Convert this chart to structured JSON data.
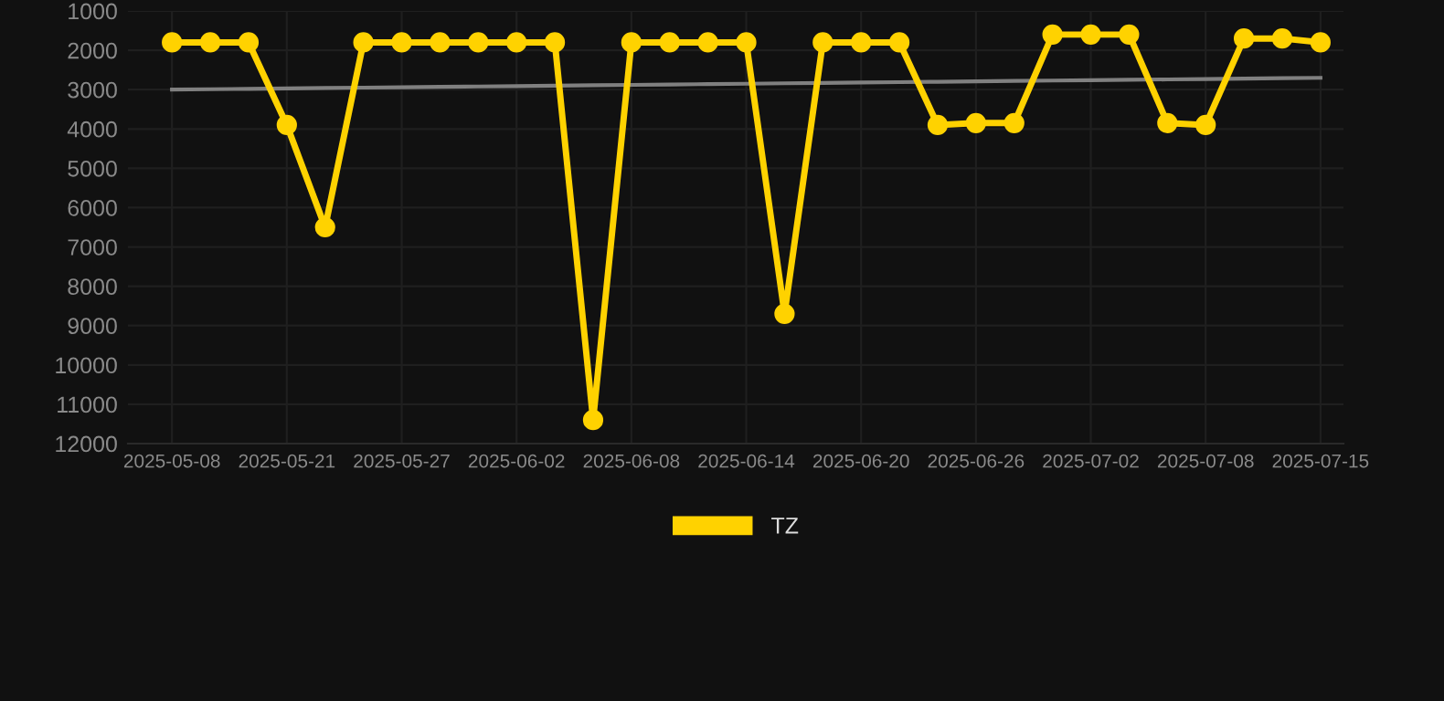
{
  "chart_data": {
    "type": "line",
    "categories": [
      "2025-05-08",
      null,
      null,
      "2025-05-21",
      null,
      null,
      "2025-05-27",
      null,
      null,
      "2025-06-02",
      null,
      null,
      "2025-06-08",
      null,
      null,
      "2025-06-14",
      null,
      null,
      "2025-06-20",
      null,
      null,
      "2025-06-26",
      null,
      null,
      "2025-07-02",
      null,
      null,
      "2025-07-08",
      null,
      null,
      "2025-07-15"
    ],
    "series": [
      {
        "name": "TZ",
        "color": "#ffd200",
        "marker": "circle",
        "values": [
          1800,
          1800,
          1800,
          3900,
          6500,
          1800,
          1800,
          1800,
          1800,
          1800,
          1800,
          11400,
          1800,
          1800,
          1800,
          1800,
          8700,
          1800,
          1800,
          1800,
          3900,
          3850,
          3850,
          1600,
          1600,
          1600,
          3850,
          3900,
          1700,
          1700,
          1800
        ]
      },
      {
        "color": "#808080",
        "marker": "none",
        "values": [
          3000,
          2990,
          2980,
          2970,
          2960,
          2950,
          2940,
          2930,
          2920,
          2910,
          2900,
          2890,
          2880,
          2870,
          2860,
          2850,
          2840,
          2830,
          2820,
          2810,
          2800,
          2790,
          2780,
          2770,
          2760,
          2750,
          2740,
          2730,
          2720,
          2710,
          2700
        ]
      }
    ],
    "ylim": [
      12000,
      1000
    ],
    "yticks": [
      1000,
      2000,
      3000,
      4000,
      5000,
      6000,
      7000,
      8000,
      9000,
      10000,
      11000,
      12000
    ],
    "grid": true,
    "legend": "bottom"
  }
}
